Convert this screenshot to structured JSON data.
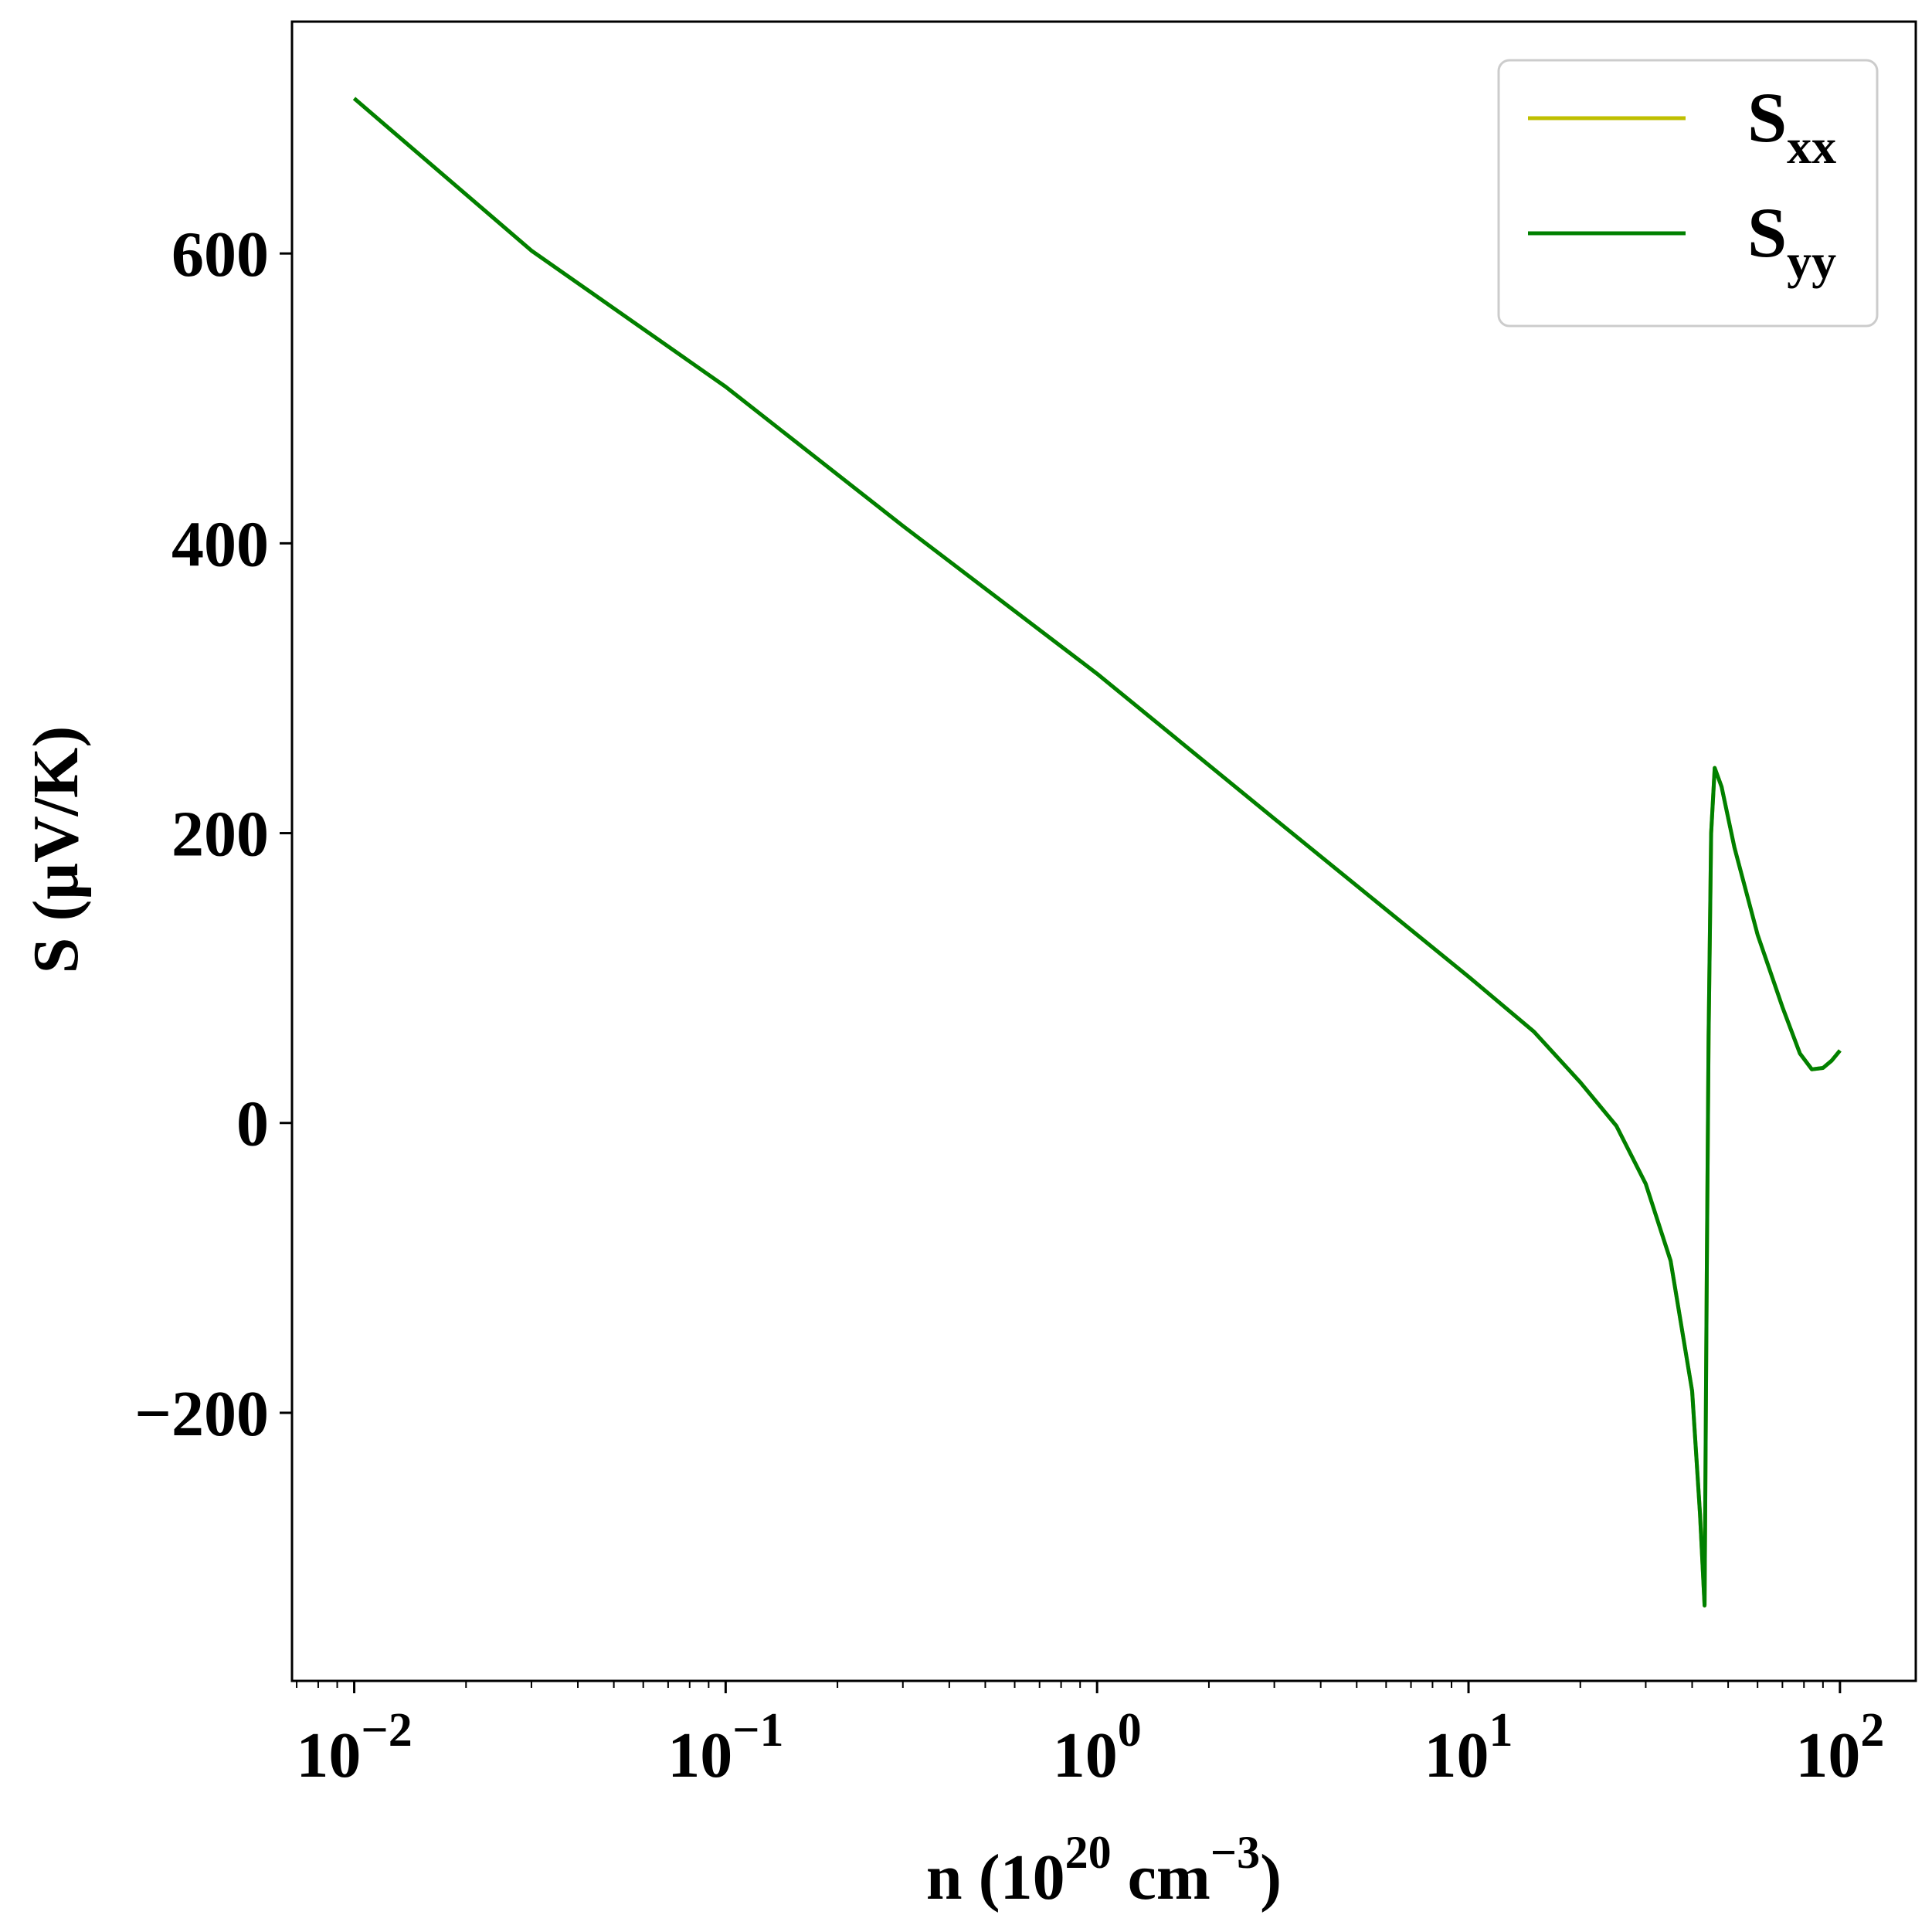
{
  "chart_data": {
    "type": "line",
    "xscale": "log",
    "xlim": [
      0.0068,
      160
    ],
    "ylim": [
      -385,
      760
    ],
    "xlabel": {
      "base": "n (10",
      "sup1": "20",
      "mid": " cm",
      "sup2": "−3",
      "end": ")"
    },
    "ylabel": "S (μV/K)",
    "x_ticks": [
      {
        "value": 0.01,
        "base": "10",
        "exp": "−2"
      },
      {
        "value": 0.1,
        "base": "10",
        "exp": "−1"
      },
      {
        "value": 1,
        "base": "10",
        "exp": "0"
      },
      {
        "value": 10,
        "base": "10",
        "exp": "1"
      },
      {
        "value": 100,
        "base": "10",
        "exp": "2"
      }
    ],
    "y_ticks": [
      {
        "value": -200,
        "label": "−200"
      },
      {
        "value": 0,
        "label": "0"
      },
      {
        "value": 200,
        "label": "200"
      },
      {
        "value": 400,
        "label": "400"
      },
      {
        "value": 600,
        "label": "600"
      }
    ],
    "grid": false,
    "legend": {
      "placement": "top-right"
    },
    "series": [
      {
        "name": "S",
        "subscript": "xx",
        "color": "#bfbf00",
        "points": [
          [
            0.01,
            707
          ],
          [
            0.03,
            602
          ],
          [
            0.1,
            508
          ],
          [
            0.3,
            412
          ],
          [
            1.0,
            310
          ],
          [
            3.0,
            210
          ],
          [
            10.0,
            101
          ],
          [
            15.0,
            63
          ],
          [
            20.0,
            28
          ],
          [
            25.0,
            -2
          ],
          [
            30.0,
            -42
          ],
          [
            35.0,
            -95
          ],
          [
            40.0,
            -185
          ],
          [
            42.0,
            -270
          ],
          [
            43.2,
            -333
          ],
          [
            43.8,
            -100
          ],
          [
            44.3,
            60
          ],
          [
            45.0,
            200
          ],
          [
            46.0,
            245
          ],
          [
            48.0,
            232
          ],
          [
            52.0,
            190
          ],
          [
            60.0,
            130
          ],
          [
            70.0,
            80
          ],
          [
            78.0,
            48
          ],
          [
            84.0,
            37
          ],
          [
            90.0,
            38
          ],
          [
            95.0,
            43
          ],
          [
            100.0,
            50
          ]
        ]
      },
      {
        "name": "S",
        "subscript": "yy",
        "color": "#008000",
        "points": [
          [
            0.01,
            707
          ],
          [
            0.03,
            602
          ],
          [
            0.1,
            508
          ],
          [
            0.3,
            412
          ],
          [
            1.0,
            310
          ],
          [
            3.0,
            210
          ],
          [
            10.0,
            101
          ],
          [
            15.0,
            63
          ],
          [
            20.0,
            28
          ],
          [
            25.0,
            -2
          ],
          [
            30.0,
            -42
          ],
          [
            35.0,
            -95
          ],
          [
            40.0,
            -185
          ],
          [
            42.0,
            -270
          ],
          [
            43.2,
            -333
          ],
          [
            43.8,
            -100
          ],
          [
            44.3,
            60
          ],
          [
            45.0,
            200
          ],
          [
            46.0,
            245
          ],
          [
            48.0,
            232
          ],
          [
            52.0,
            190
          ],
          [
            60.0,
            130
          ],
          [
            70.0,
            80
          ],
          [
            78.0,
            48
          ],
          [
            84.0,
            37
          ],
          [
            90.0,
            38
          ],
          [
            95.0,
            43
          ],
          [
            100.0,
            50
          ]
        ]
      }
    ]
  }
}
